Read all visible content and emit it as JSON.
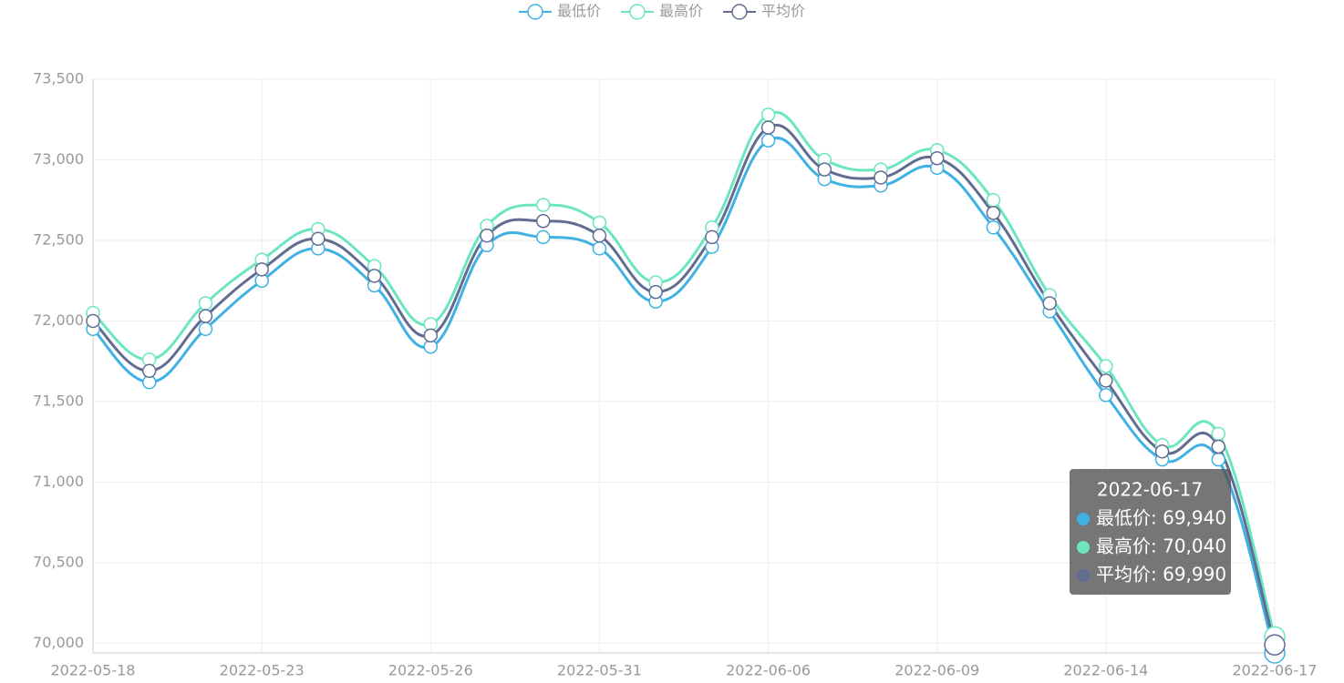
{
  "chart_data": {
    "type": "line",
    "smooth": true,
    "categories": [
      "2022-05-18",
      null,
      null,
      "2022-05-23",
      null,
      null,
      "2022-05-26",
      null,
      null,
      "2022-05-31",
      null,
      null,
      "2022-06-06",
      null,
      null,
      "2022-06-09",
      null,
      null,
      "2022-06-14",
      null,
      null,
      "2022-06-17"
    ],
    "series": [
      {
        "name": "最低价",
        "color": "#3fb1e3",
        "values": [
          71950,
          71620,
          71950,
          72250,
          72450,
          72220,
          71840,
          72470,
          72520,
          72450,
          72120,
          72460,
          73120,
          72880,
          72840,
          72950,
          72580,
          72060,
          71540,
          71140,
          71140,
          69940
        ]
      },
      {
        "name": "最高价",
        "color": "#6be6c1",
        "values": [
          72050,
          71760,
          72110,
          72380,
          72570,
          72340,
          71980,
          72590,
          72720,
          72610,
          72240,
          72580,
          73280,
          73000,
          72940,
          73060,
          72750,
          72160,
          71720,
          71230,
          71300,
          70040
        ]
      },
      {
        "name": "平均价",
        "color": "#626c91",
        "values": [
          72000,
          71690,
          72030,
          72320,
          72510,
          72280,
          71910,
          72530,
          72620,
          72530,
          72180,
          72520,
          73200,
          72940,
          72890,
          73010,
          72670,
          72110,
          71630,
          71190,
          71220,
          69990
        ]
      }
    ],
    "ylim": [
      69940,
      73500
    ],
    "yticks": [
      {
        "value": 70000,
        "label": "70,000"
      },
      {
        "value": 70500,
        "label": "70,500"
      },
      {
        "value": 71000,
        "label": "71,000"
      },
      {
        "value": 71500,
        "label": "71,500"
      },
      {
        "value": 72000,
        "label": "72,000"
      },
      {
        "value": 72500,
        "label": "72,500"
      },
      {
        "value": 73000,
        "label": "73,000"
      },
      {
        "value": 73500,
        "label": "73,500"
      }
    ],
    "grid": true,
    "legend": "top",
    "tooltip": {
      "title": "2022-06-17",
      "rows": [
        "最低价: 69,940",
        "最高价: 70,040",
        "平均价: 69,990"
      ]
    }
  }
}
